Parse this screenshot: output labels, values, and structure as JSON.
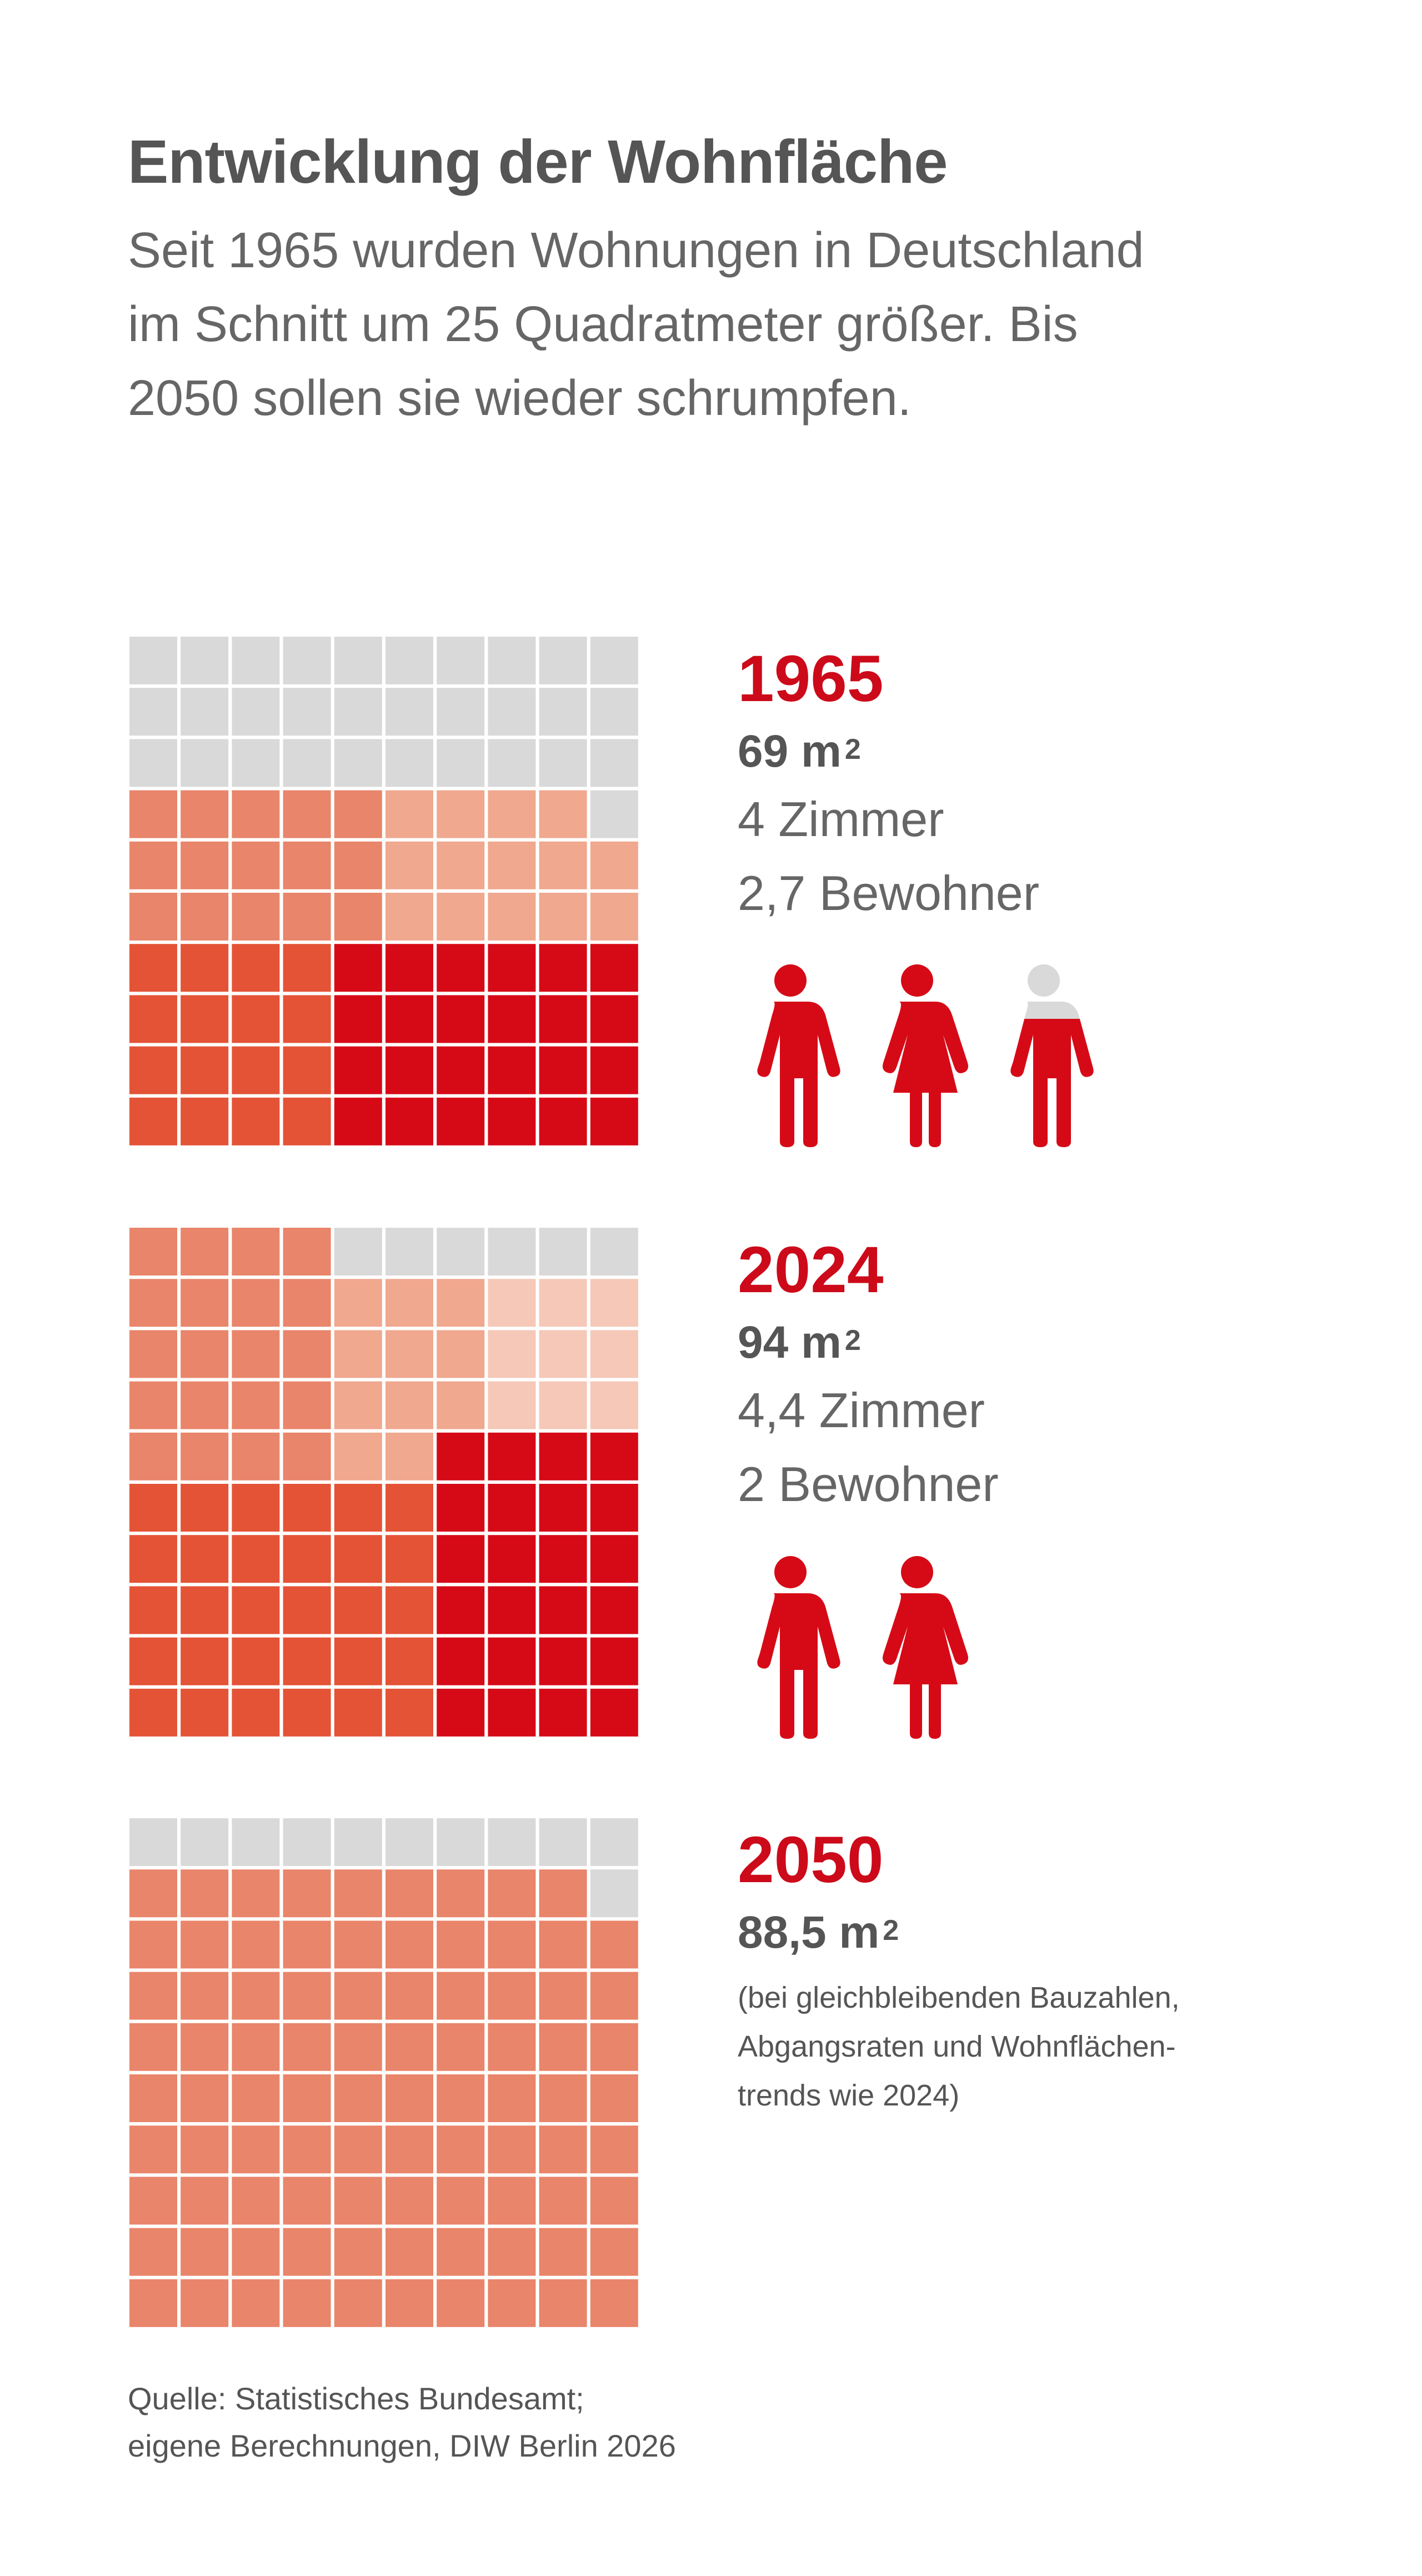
{
  "title": "Entwicklung der Wohnfläche",
  "subtitle": [
    "Seit 1965 wurden Wohnungen in Deutschland",
    "im Schnitt um 25 Quadratmeter größer. Bis",
    "2050 sollen sie wieder schrumpfen."
  ],
  "colors": {
    "empty": "#d9d9d9",
    "zone_dark": "#d60a17",
    "zone_mid": "#e45336",
    "zone_light": "#e9856a",
    "zone_pale": "#f0a88f",
    "zone_paler": "#f5c8b7",
    "accent": "#cc0a1a",
    "person_full": "#d60a17",
    "person_partial": "#d9d9d9"
  },
  "chart_data": [
    {
      "type": "waffle",
      "year": "1965",
      "area_value": 69,
      "area_label": "69 m",
      "area_unit_sup": "2",
      "rooms_value": 4,
      "rooms_label": "4 Zimmer",
      "residents_value": 2.7,
      "residents_label": "2,7 Bewohner",
      "persons": [
        {
          "type": "male",
          "fill": 1
        },
        {
          "type": "female",
          "fill": 1
        },
        {
          "type": "male",
          "fill": 0.7
        }
      ]
    },
    {
      "type": "waffle",
      "year": "2024",
      "area_value": 94,
      "area_label": "94 m",
      "area_unit_sup": "2",
      "rooms_value": 4.4,
      "rooms_label": "4,4 Zimmer",
      "residents_value": 2,
      "residents_label": "2 Bewohner",
      "persons": [
        {
          "type": "male",
          "fill": 1
        },
        {
          "type": "female",
          "fill": 1
        }
      ]
    },
    {
      "type": "waffle",
      "year": "2050",
      "area_value": 88.5,
      "area_label": "88,5 m",
      "area_unit_sup": "2",
      "note": [
        "(bei gleichbleibenden Bauzahlen,",
        "Abgangsraten und Wohnflächen-",
        "trends wie 2024)"
      ],
      "persons": []
    }
  ],
  "waffle_grids": [
    [
      "EEEEEEEEEE",
      "EEEEEEEEEE",
      "EEEEEEEEEE",
      "LLLLLPPPPE",
      "LLLLLPPPPP",
      "LLLLLPPPPP",
      "MMMMDDDDDD",
      "MMMMDDDDDD",
      "MMMMDDDDDD",
      "MMMMDDDDDD"
    ],
    [
      "LLLLEEEEEE",
      "LLLLPPPQQQ",
      "LLLLPPPQQQ",
      "LLLLPPPQQQ",
      "LLLLPPDDDD",
      "MMMMMMDDDD",
      "MMMMMMDDDD",
      "MMMMMMDDDD",
      "MMMMMMDDDD",
      "MMMMMMDDDD"
    ],
    [
      "EEEEEEEEEE",
      "LLLLLLLLLE",
      "LLLLLLLLLL",
      "LLLLLLLLLL",
      "LLLLLLLLLL",
      "LLLLLLLLLL",
      "LLLLLLLLLL",
      "LLLLLLLLLL",
      "LLLLLLLLLL",
      "LLLLLLLLLL"
    ]
  ],
  "source": [
    "Quelle: Statistisches Bundesamt;",
    "eigene Berechnungen, DIW Berlin 2026"
  ]
}
